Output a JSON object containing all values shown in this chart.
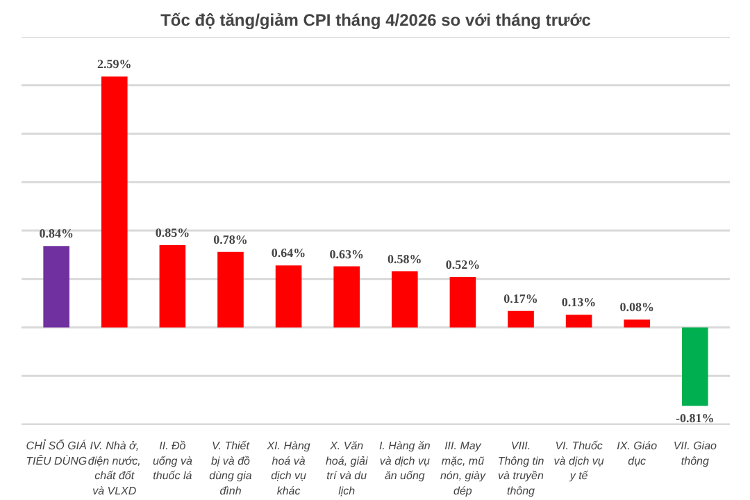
{
  "chart_data": {
    "type": "bar",
    "title": "Tốc độ tăng/giảm CPI tháng 4/2026 so với tháng trước",
    "categories": [
      "CHỈ SỐ GIÁ TIÊU DÙNG",
      "IV. Nhà ở, điện nước, chất đốt và VLXD",
      "II. Đồ uống và thuốc lá",
      "V. Thiết bị và đồ dùng gia đình",
      "XI. Hàng hoá và dịch vụ khác",
      "X. Văn hoá, giải trí và du lịch",
      "I. Hàng ăn và dịch vụ ăn uống",
      "III. May mặc, mũ nón, giày dép",
      "VIII. Thông tin và truyền thông",
      "VI. Thuốc và dịch vụ y tế",
      "IX. Giáo dục",
      "VII. Giao thông"
    ],
    "values": [
      0.84,
      2.59,
      0.85,
      0.78,
      0.64,
      0.63,
      0.58,
      0.52,
      0.17,
      0.13,
      0.08,
      -0.81
    ],
    "colors": [
      "#7030a0",
      "#ff0000",
      "#ff0000",
      "#ff0000",
      "#ff0000",
      "#ff0000",
      "#ff0000",
      "#ff0000",
      "#ff0000",
      "#ff0000",
      "#ff0000",
      "#00b050"
    ],
    "value_labels": [
      "0.84%",
      "2.59%",
      "0.85%",
      "0.78%",
      "0.64%",
      "0.63%",
      "0.58%",
      "0.52%",
      "0.17%",
      "0.13%",
      "0.08%",
      "-0.81%"
    ],
    "ylim": [
      -1,
      3
    ],
    "yticks": [
      {
        "value": -1,
        "label": null
      },
      {
        "value": -0.5,
        "label": null
      },
      {
        "value": 0,
        "label": null
      },
      {
        "value": 0.5,
        "label": null
      },
      {
        "value": 1,
        "label": null
      },
      {
        "value": 1.5,
        "label": null
      },
      {
        "value": 2,
        "label": null
      },
      {
        "value": 2.5,
        "label": null
      },
      {
        "value": 3,
        "label": null
      }
    ],
    "grid": "y",
    "tick_labels": "x"
  }
}
